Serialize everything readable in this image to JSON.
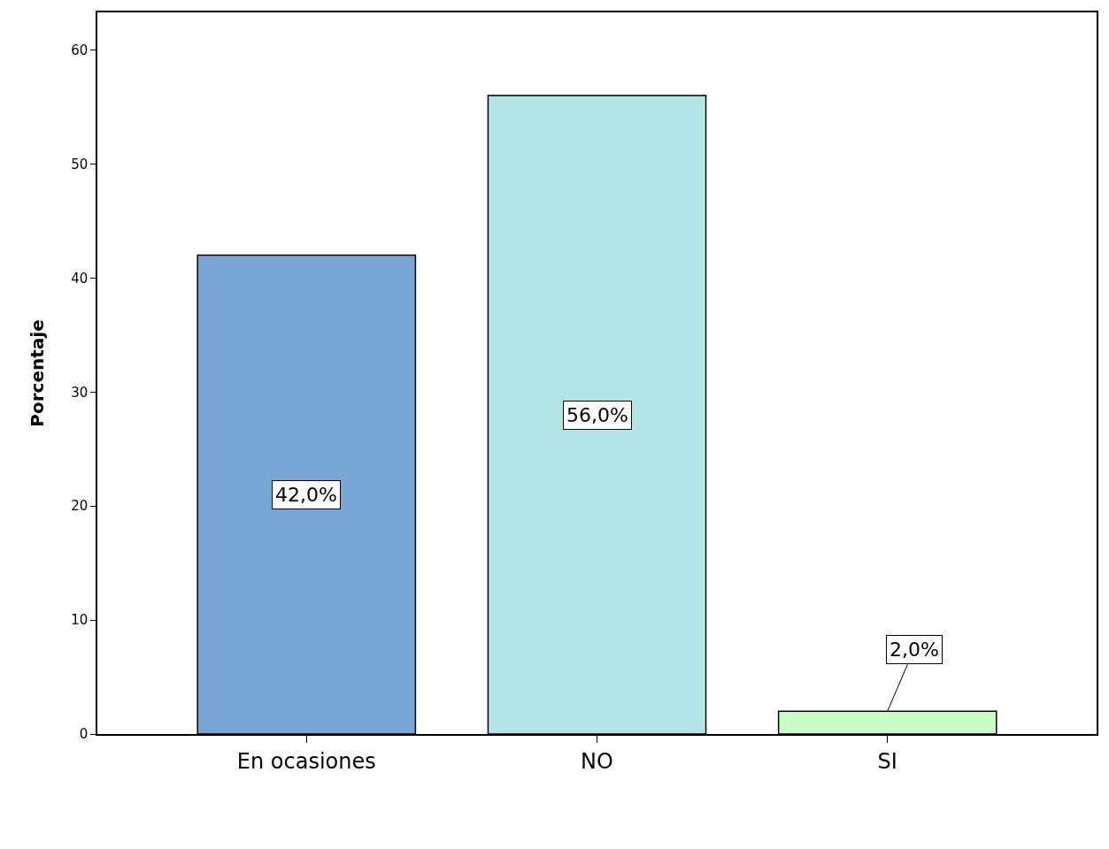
{
  "chart_data": {
    "type": "bar",
    "ylabel": "Porcentaje",
    "categories": [
      "En ocasiones",
      "NO",
      "SI"
    ],
    "values": [
      42.0,
      56.0,
      2.0
    ],
    "colors": [
      "#79a7d5",
      "#b4e5e6",
      "#c9fbc4"
    ],
    "value_labels": [
      "42,0%",
      "56,0%",
      "2,0%"
    ],
    "ylim": [
      0,
      63.3
    ],
    "yticks": [
      0,
      10,
      20,
      30,
      40,
      50,
      60
    ]
  }
}
